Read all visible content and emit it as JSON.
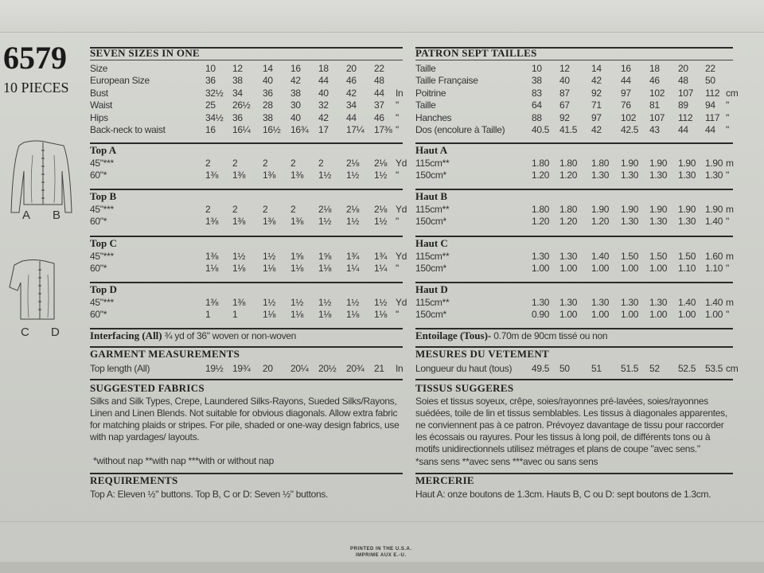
{
  "pattern_number": "6579",
  "pieces": "10 PIECES",
  "view_labels": [
    "A",
    "B",
    "C",
    "D"
  ],
  "printed": [
    "PRINTED IN THE U.S.A.",
    "IMPRIME AUX E.-U."
  ],
  "english": {
    "title": "SEVEN SIZES IN ONE",
    "measurements": [
      {
        "label": "Size",
        "values": [
          "10",
          "12",
          "14",
          "16",
          "18",
          "20",
          "22"
        ],
        "unit": ""
      },
      {
        "label": "European Size",
        "values": [
          "36",
          "38",
          "40",
          "42",
          "44",
          "46",
          "48"
        ],
        "unit": ""
      },
      {
        "label": "Bust",
        "values": [
          "32½",
          "34",
          "36",
          "38",
          "40",
          "42",
          "44"
        ],
        "unit": "In"
      },
      {
        "label": "Waist",
        "values": [
          "25",
          "26½",
          "28",
          "30",
          "32",
          "34",
          "37"
        ],
        "unit": "\""
      },
      {
        "label": "Hips",
        "values": [
          "34½",
          "36",
          "38",
          "40",
          "42",
          "44",
          "46"
        ],
        "unit": "\""
      },
      {
        "label": "Back-neck to waist",
        "values": [
          "16",
          "16¼",
          "16½",
          "16¾",
          "17",
          "17¼",
          "17⅜"
        ],
        "unit": "\""
      }
    ],
    "views": [
      {
        "title": "Top A",
        "rows": [
          {
            "label": "45\"***",
            "values": [
              "2",
              "2",
              "2",
              "2",
              "2",
              "2⅛",
              "2⅛"
            ],
            "unit": "Yd"
          },
          {
            "label": "60\"*",
            "values": [
              "1⅜",
              "1⅜",
              "1⅜",
              "1⅜",
              "1½",
              "1½",
              "1½"
            ],
            "unit": "\""
          }
        ]
      },
      {
        "title": "Top B",
        "rows": [
          {
            "label": "45\"***",
            "values": [
              "2",
              "2",
              "2",
              "2",
              "2⅛",
              "2⅛",
              "2⅛"
            ],
            "unit": "Yd"
          },
          {
            "label": "60\"*",
            "values": [
              "1⅜",
              "1⅜",
              "1⅜",
              "1⅜",
              "1½",
              "1½",
              "1½"
            ],
            "unit": "\""
          }
        ]
      },
      {
        "title": "Top C",
        "rows": [
          {
            "label": "45\"***",
            "values": [
              "1⅜",
              "1½",
              "1½",
              "1⅝",
              "1⅝",
              "1¾",
              "1¾"
            ],
            "unit": "Yd"
          },
          {
            "label": "60\"*",
            "values": [
              "1⅛",
              "1⅛",
              "1⅛",
              "1⅛",
              "1⅛",
              "1¼",
              "1¼"
            ],
            "unit": "\""
          }
        ]
      },
      {
        "title": "Top D",
        "rows": [
          {
            "label": "45\"***",
            "values": [
              "1⅜",
              "1⅜",
              "1½",
              "1½",
              "1½",
              "1½",
              "1½"
            ],
            "unit": "Yd"
          },
          {
            "label": "60\"*",
            "values": [
              "1",
              "1",
              "1⅛",
              "1⅛",
              "1⅛",
              "1⅛",
              "1⅛"
            ],
            "unit": "\""
          }
        ]
      }
    ],
    "interfacing_label": "Interfacing (All)",
    "interfacing_text": "¾ yd of 36\" woven or non-woven",
    "garment_title": "GARMENT MEASUREMENTS",
    "garment_row": {
      "label": "Top length (All)",
      "values": [
        "19½",
        "19¾",
        "20",
        "20¼",
        "20½",
        "20¾",
        "21"
      ],
      "unit": "In"
    },
    "fabrics_title": "SUGGESTED FABRICS",
    "fabrics_text": "Silks and Silk Types, Crepe, Laundered Silks-Rayons, Sueded Silks/Rayons, Linen and Linen Blends. Not suitable for obvious diagonals. Allow extra fabric for matching plaids or stripes. For pile, shaded or one-way design fabrics, use with nap yardages/ layouts.",
    "nap_note": "*without nap **with nap ***with or without nap",
    "requirements_title": "REQUIREMENTS",
    "requirements_text": "Top A: Eleven ½\" buttons. Top B, C or D: Seven ½\" buttons."
  },
  "french": {
    "title": "PATRON SEPT TAILLES",
    "measurements": [
      {
        "label": "Taille",
        "values": [
          "10",
          "12",
          "14",
          "16",
          "18",
          "20",
          "22"
        ],
        "unit": ""
      },
      {
        "label": "Taille Française",
        "values": [
          "38",
          "40",
          "42",
          "44",
          "46",
          "48",
          "50"
        ],
        "unit": ""
      },
      {
        "label": "Poitrine",
        "values": [
          "83",
          "87",
          "92",
          "97",
          "102",
          "107",
          "112"
        ],
        "unit": "cm"
      },
      {
        "label": "Taille",
        "values": [
          "64",
          "67",
          "71",
          "76",
          "81",
          "89",
          "94"
        ],
        "unit": "\""
      },
      {
        "label": "Hanches",
        "values": [
          "88",
          "92",
          "97",
          "102",
          "107",
          "112",
          "117"
        ],
        "unit": "\""
      },
      {
        "label": "Dos (encolure à Taille)",
        "values": [
          "40.5",
          "41.5",
          "42",
          "42.5",
          "43",
          "44",
          "44"
        ],
        "unit": "\""
      }
    ],
    "views": [
      {
        "title": "Haut A",
        "rows": [
          {
            "label": "115cm**",
            "values": [
              "1.80",
              "1.80",
              "1.80",
              "1.90",
              "1.90",
              "1.90",
              "1.90"
            ],
            "unit": "m"
          },
          {
            "label": "150cm*",
            "values": [
              "1.20",
              "1.20",
              "1.30",
              "1.30",
              "1.30",
              "1.30",
              "1.30"
            ],
            "unit": "\""
          }
        ]
      },
      {
        "title": "Haut B",
        "rows": [
          {
            "label": "115cm**",
            "values": [
              "1.80",
              "1.80",
              "1.90",
              "1.90",
              "1.90",
              "1.90",
              "1.90"
            ],
            "unit": "m"
          },
          {
            "label": "150cm*",
            "values": [
              "1.20",
              "1.20",
              "1.20",
              "1.30",
              "1.30",
              "1.30",
              "1.40"
            ],
            "unit": "\""
          }
        ]
      },
      {
        "title": "Haut C",
        "rows": [
          {
            "label": "115cm**",
            "values": [
              "1.30",
              "1.30",
              "1.40",
              "1.50",
              "1.50",
              "1.50",
              "1.60"
            ],
            "unit": "m"
          },
          {
            "label": "150cm*",
            "values": [
              "1.00",
              "1.00",
              "1.00",
              "1.00",
              "1.00",
              "1.10",
              "1.10"
            ],
            "unit": "\""
          }
        ]
      },
      {
        "title": "Haut D",
        "rows": [
          {
            "label": "115cm**",
            "values": [
              "1.30",
              "1.30",
              "1.30",
              "1.30",
              "1.30",
              "1.40",
              "1.40"
            ],
            "unit": "m"
          },
          {
            "label": "150cm*",
            "values": [
              "0.90",
              "1.00",
              "1.00",
              "1.00",
              "1.00",
              "1.00",
              "1.00"
            ],
            "unit": "\""
          }
        ]
      }
    ],
    "interfacing_label": "Entoilage (Tous)-",
    "interfacing_text": "0.70m de 90cm tissé ou non",
    "garment_title": "MESURES DU VETEMENT",
    "garment_row": {
      "label": "Longueur du haut (tous)",
      "values": [
        "49.5",
        "50",
        "51",
        "51.5",
        "52",
        "52.5",
        "53.5"
      ],
      "unit": "cm"
    },
    "fabrics_title": "TISSUS SUGGERES",
    "fabrics_text": "Soies et tissus soyeux, crêpe, soies/rayonnes pré-lavées, soies/rayonnes suédées, toile de lin et tissus semblables. Les tissus à diagonales apparentes, ne conviennent pas à ce patron. Prévoyez davantage de tissu pour raccorder les écossais ou rayures. Pour les tissus à long poil, de différents tons ou à motifs unidirectionnels utilisez métrages et plans de coupe \"avec sens.\"",
    "nap_note": "*sans sens **avec sens ***avec ou sans sens",
    "requirements_title": "MERCERIE",
    "requirements_text": "Haut A: onze boutons de 1.3cm. Hauts B, C ou D: sept boutons de 1.3cm."
  }
}
